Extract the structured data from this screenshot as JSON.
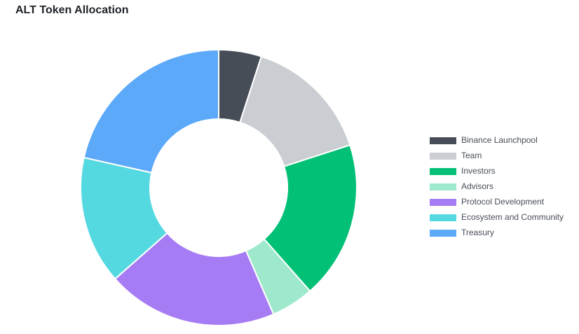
{
  "chart_data": {
    "type": "donut",
    "title": "ALT Token Allocation",
    "categories": [
      "Binance Launchpool",
      "Team",
      "Investors",
      "Advisors",
      "Protocol Development",
      "Ecosystem and Community",
      "Treasury"
    ],
    "values": [
      5,
      15,
      18.5,
      5,
      20,
      15,
      21.5
    ],
    "colors": [
      "#474d57",
      "#cacdd1",
      "#02c076",
      "#9ee8cc",
      "#a67cf5",
      "#55d9e0",
      "#5ca8f9"
    ],
    "legend": "right"
  }
}
